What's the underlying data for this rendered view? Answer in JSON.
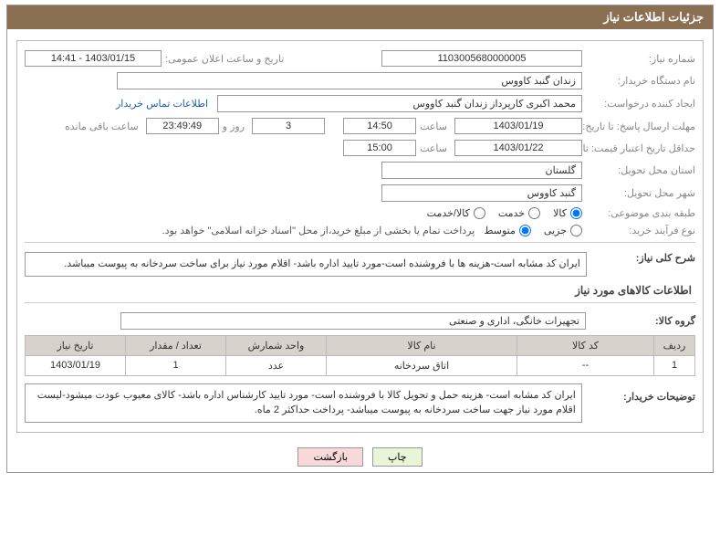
{
  "panel_title": "جزئیات اطلاعات نیاز",
  "labels": {
    "need_number": "شماره نیاز:",
    "announce_datetime": "تاریخ و ساعت اعلان عمومی:",
    "buyer_org": "نام دستگاه خریدار:",
    "requester": "ایجاد کننده درخواست:",
    "deadline": "مهلت ارسال پاسخ: تا تاریخ:",
    "hour": "ساعت",
    "days_and": "روز و",
    "remaining": "ساعت باقی مانده",
    "validity": "حداقل تاریخ اعتبار قیمت: تا تاریخ:",
    "province": "استان محل تحویل:",
    "city": "شهر محل تحویل:",
    "category": "طبقه بندی موضوعی:",
    "purchase_type": "نوع فرآیند خرید:",
    "payment_note": "پرداخت تمام یا بخشی از مبلغ خرید،از محل \"اسناد خزانه اسلامی\" خواهد بود.",
    "overall_desc": "شرح کلی نیاز:",
    "items_info": "اطلاعات کالاهای مورد نیاز",
    "goods_group": "گروه کالا:",
    "buyer_notes": "توضیحات خریدار:",
    "contact_link": "اطلاعات تماس خریدار"
  },
  "values": {
    "need_number": "1103005680000005",
    "announce_datetime": "1403/01/15 - 14:41",
    "buyer_org": "زندان گنبد کاووس",
    "requester": "محمد اکبری کارپرداز زندان گنبد کاووس",
    "deadline_date": "1403/01/19",
    "deadline_time": "14:50",
    "days_remaining": "3",
    "countdown": "23:49:49",
    "validity_date": "1403/01/22",
    "validity_time": "15:00",
    "province": "گلستان",
    "city": "گنبد کاووس",
    "overall_desc": "ایران کد مشابه است-هزینه ها با فروشنده است-مورد تایید اداره باشد- اقلام مورد نیاز برای ساخت سردخانه به پیوست میباشد.",
    "goods_group": "تجهیزات خانگی، اداری و صنعتی",
    "buyer_notes": "ایران کد مشابه است- هزینه حمل و تحویل کالا با فروشنده است- مورد تایید کارشناس اداره باشد- کالای معیوب عودت میشود-لیست اقلام مورد نیاز جهت ساخت سردخانه به پیوست میباشد- پرداخت حداکثر 2 ماه."
  },
  "radios": {
    "category": [
      {
        "label": "کالا",
        "checked": true
      },
      {
        "label": "خدمت",
        "checked": false
      },
      {
        "label": "کالا/خدمت",
        "checked": false
      }
    ],
    "purchase_type": [
      {
        "label": "جزیی",
        "checked": false
      },
      {
        "label": "متوسط",
        "checked": true
      }
    ]
  },
  "table": {
    "headers": [
      "ردیف",
      "کد کالا",
      "نام کالا",
      "واحد شمارش",
      "تعداد / مقدار",
      "تاریخ نیاز"
    ],
    "rows": [
      [
        "1",
        "--",
        "اتاق سردخانه",
        "عدد",
        "1",
        "1403/01/19"
      ]
    ]
  },
  "buttons": {
    "print": "چاپ",
    "back": "بازگشت"
  },
  "colors": {
    "header_bg": "#8b6f52",
    "border": "#999999",
    "label_color": "#888888"
  }
}
